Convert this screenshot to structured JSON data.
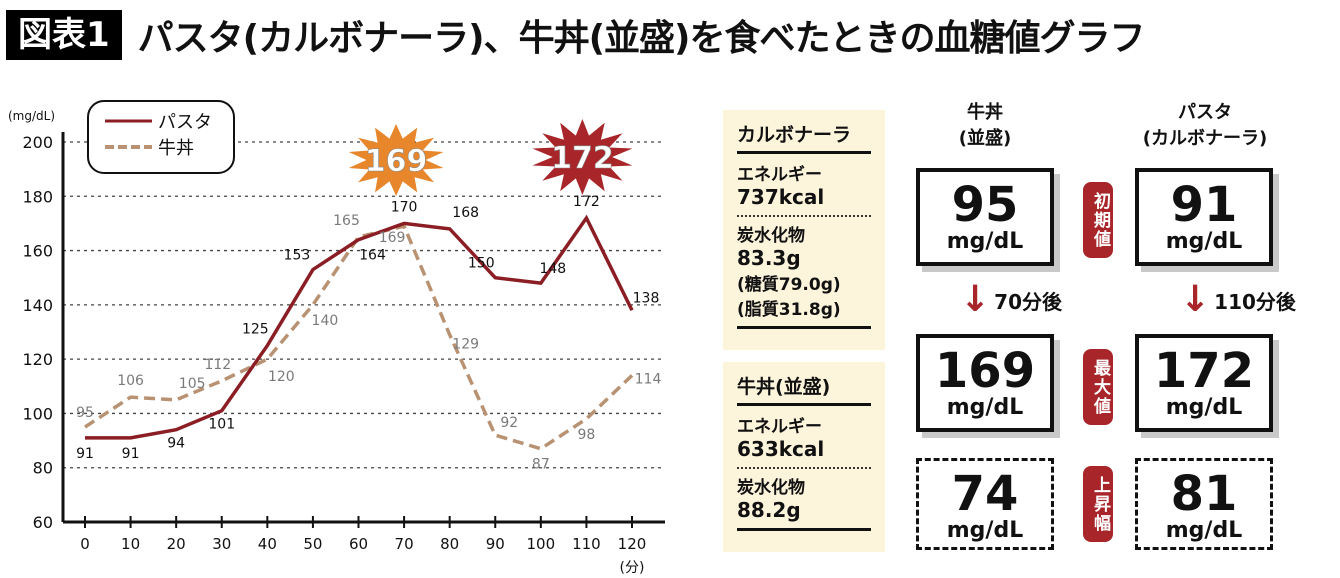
{
  "header": {
    "badge": "図表1",
    "title": "パスタ(カルボナーラ)、牛丼(並盛)を食べたときの血糖値グラフ"
  },
  "chart_data": {
    "type": "line",
    "title": "パスタ(カルボナーラ)、牛丼(並盛)を食べたときの血糖値グラフ",
    "ylabel": "(mg/dL)",
    "xlabel": "(分)",
    "ylim": [
      60,
      200
    ],
    "yticks": [
      60,
      80,
      100,
      120,
      140,
      160,
      180,
      200
    ],
    "xlim": [
      0,
      120
    ],
    "x": [
      0,
      10,
      20,
      30,
      40,
      50,
      60,
      70,
      80,
      90,
      100,
      110,
      120
    ],
    "grid": true,
    "legend_position": "top-left",
    "series": [
      {
        "name": "パスタ",
        "style": "solid",
        "color": "#8b1e24",
        "label_color": "#111111",
        "values": [
          91,
          91,
          94,
          101,
          125,
          153,
          164,
          170,
          168,
          150,
          148,
          172,
          138
        ]
      },
      {
        "name": "牛丼",
        "style": "dashed",
        "color": "#b89272",
        "label_color": "#7a7a7a",
        "values": [
          95,
          106,
          105,
          112,
          120,
          140,
          165,
          169,
          129,
          92,
          87,
          98,
          114
        ]
      }
    ],
    "annotations": [
      {
        "text": "169",
        "x": 70,
        "series": "牛丼",
        "color": "#e8862c"
      },
      {
        "text": "172",
        "x": 110,
        "series": "パスタ",
        "color": "#a8262a"
      }
    ]
  },
  "cards": [
    {
      "title": "カルボナーラ",
      "energy_label": "エネルギー",
      "energy": "737kcal",
      "carb_label": "炭水化物",
      "carb": "83.3g",
      "extras": [
        "(糖質79.0g)",
        "(脂質31.8g)"
      ]
    },
    {
      "title": "牛丼(並盛)",
      "energy_label": "エネルギー",
      "energy": "633kcal",
      "carb_label": "炭水化物",
      "carb": "88.2g",
      "extras": []
    }
  ],
  "comparison": {
    "columns": [
      {
        "line1": "牛丼",
        "line2": "(並盛)",
        "initial": "95",
        "peak": "169",
        "rise": "74",
        "after": "70分後"
      },
      {
        "line1": "パスタ",
        "line2": "(カルボナーラ)",
        "initial": "91",
        "peak": "172",
        "rise": "81",
        "after": "110分後"
      }
    ],
    "unit": "mg/dL",
    "labels": {
      "initial": "初期値",
      "peak": "最大値",
      "rise": "上昇幅"
    },
    "accent": "#a8262a"
  }
}
